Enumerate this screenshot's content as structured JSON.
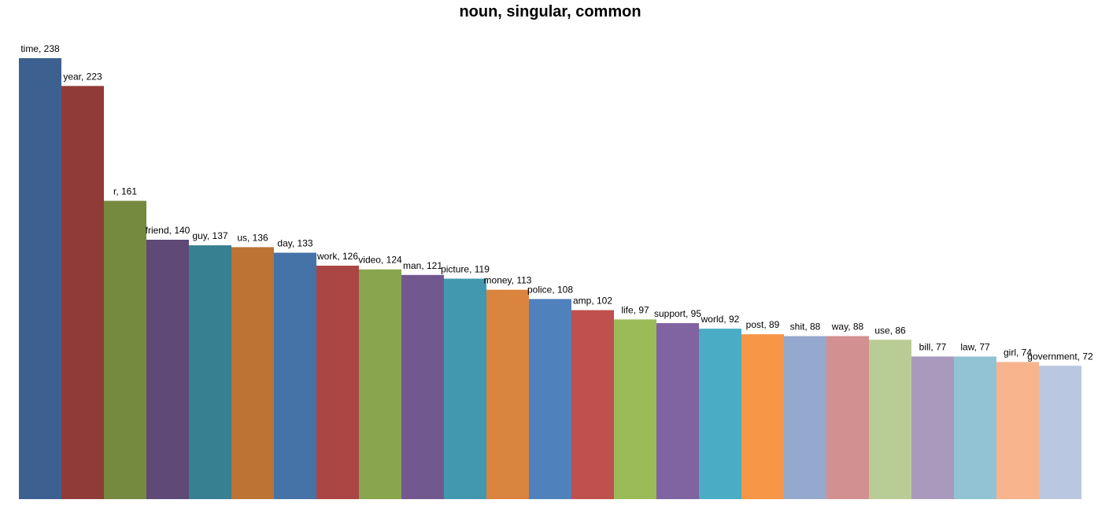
{
  "chart_data": {
    "type": "bar",
    "title": "noun, singular, common",
    "xlabel": "",
    "ylabel": "",
    "ylim": [
      0,
      238
    ],
    "grid": false,
    "legend": "none",
    "categories": [
      "time",
      "year",
      "r",
      "friend",
      "guy",
      "us",
      "day",
      "work",
      "video",
      "man",
      "picture",
      "money",
      "police",
      "amp",
      "life",
      "support",
      "world",
      "post",
      "shit",
      "way",
      "use",
      "bill",
      "law",
      "girl",
      "government"
    ],
    "values": [
      238,
      223,
      161,
      140,
      137,
      136,
      133,
      126,
      124,
      121,
      119,
      113,
      108,
      102,
      97,
      95,
      92,
      89,
      88,
      88,
      86,
      77,
      77,
      74,
      72
    ],
    "data_labels": [
      "time, 238",
      "year, 223",
      "r, 161",
      "friend, 140",
      "guy, 137",
      "us, 136",
      "day, 133",
      "work, 126",
      "video, 124",
      "man, 121",
      "picture, 119",
      "money, 113",
      "police, 108",
      "amp, 102",
      "life, 97",
      "support, 95",
      "world, 92",
      "post, 89",
      "shit, 88",
      "way, 88",
      "use, 86",
      "bill, 77",
      "law, 77",
      "girl, 74",
      "government, 72"
    ],
    "colors": [
      "#3C6190",
      "#913B38",
      "#758A3F",
      "#5E4977",
      "#368092",
      "#BC7333",
      "#4572A7",
      "#AA4643",
      "#89A54E",
      "#71588F",
      "#4198AF",
      "#DB843D",
      "#4F81BD",
      "#C0504D",
      "#9BBB59",
      "#8064A2",
      "#4BACC6",
      "#F79646",
      "#95A9CF",
      "#D29190",
      "#B9CC95",
      "#A99ABD",
      "#92C3D4",
      "#F8B48C",
      "#BAC7E0"
    ]
  }
}
